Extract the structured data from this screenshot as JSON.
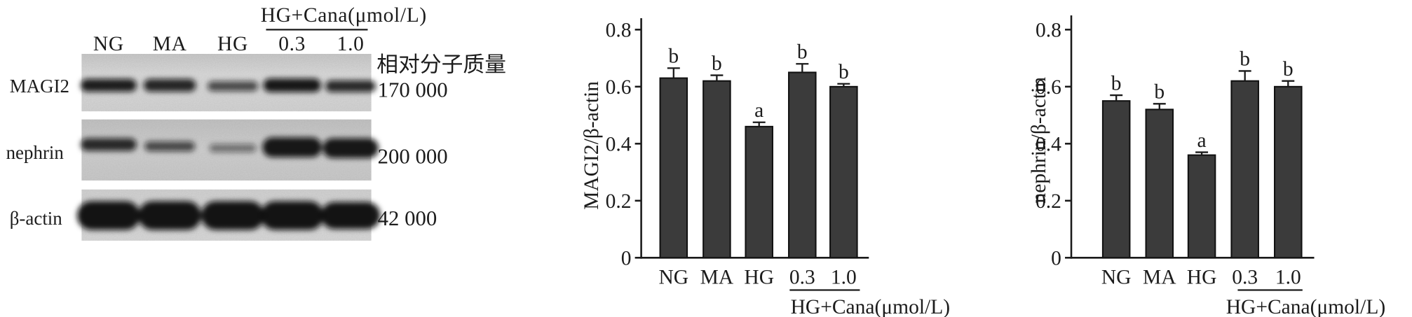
{
  "blot": {
    "treatment_header": "HG+Cana(μmol/L)",
    "lanes": [
      "NG",
      "MA",
      "HG",
      "0.3",
      "1.0"
    ],
    "mw_header": "相对分子质量",
    "rows": [
      {
        "protein": "MAGI2",
        "mw": "170 000"
      },
      {
        "protein": "nephrin",
        "mw": "200 000"
      },
      {
        "protein": "β-actin",
        "mw": "42 000"
      }
    ]
  },
  "chart_data": [
    {
      "type": "bar",
      "categories": [
        "NG",
        "MA",
        "HG",
        "0.3",
        "1.0"
      ],
      "values": [
        0.63,
        0.62,
        0.46,
        0.65,
        0.6
      ],
      "error": [
        0.035,
        0.02,
        0.015,
        0.03,
        0.01
      ],
      "significance": [
        "b",
        "b",
        "a",
        "b",
        "b"
      ],
      "title": "",
      "xlabel": "",
      "ylabel": "MAGI2/β-actin",
      "group": {
        "label": "HG+Cana(μmol/L)",
        "category_indices": [
          3,
          4
        ]
      },
      "ylim": [
        0,
        0.84
      ],
      "yticks": [
        0,
        0.2,
        0.4,
        0.6,
        0.8
      ],
      "ytick_labels": [
        "0",
        "0.2",
        "0.4",
        "0.6",
        "0.8"
      ],
      "grid": false,
      "bar_color": "#3b3b3b"
    },
    {
      "type": "bar",
      "categories": [
        "NG",
        "MA",
        "HG",
        "0.3",
        "1.0"
      ],
      "values": [
        0.55,
        0.52,
        0.36,
        0.62,
        0.6
      ],
      "error": [
        0.02,
        0.02,
        0.01,
        0.035,
        0.02
      ],
      "significance": [
        "b",
        "b",
        "a",
        "b",
        "b"
      ],
      "title": "",
      "xlabel": "",
      "ylabel": "nephrin/β-actin",
      "group": {
        "label": "HG+Cana(μmol/L)",
        "category_indices": [
          3,
          4
        ]
      },
      "ylim": [
        0,
        0.85
      ],
      "yticks": [
        0,
        0.2,
        0.4,
        0.6,
        0.8
      ],
      "ytick_labels": [
        "0",
        "0.2",
        "0.4",
        "0.6",
        "0.8"
      ],
      "grid": false,
      "bar_color": "#3b3b3b"
    }
  ]
}
